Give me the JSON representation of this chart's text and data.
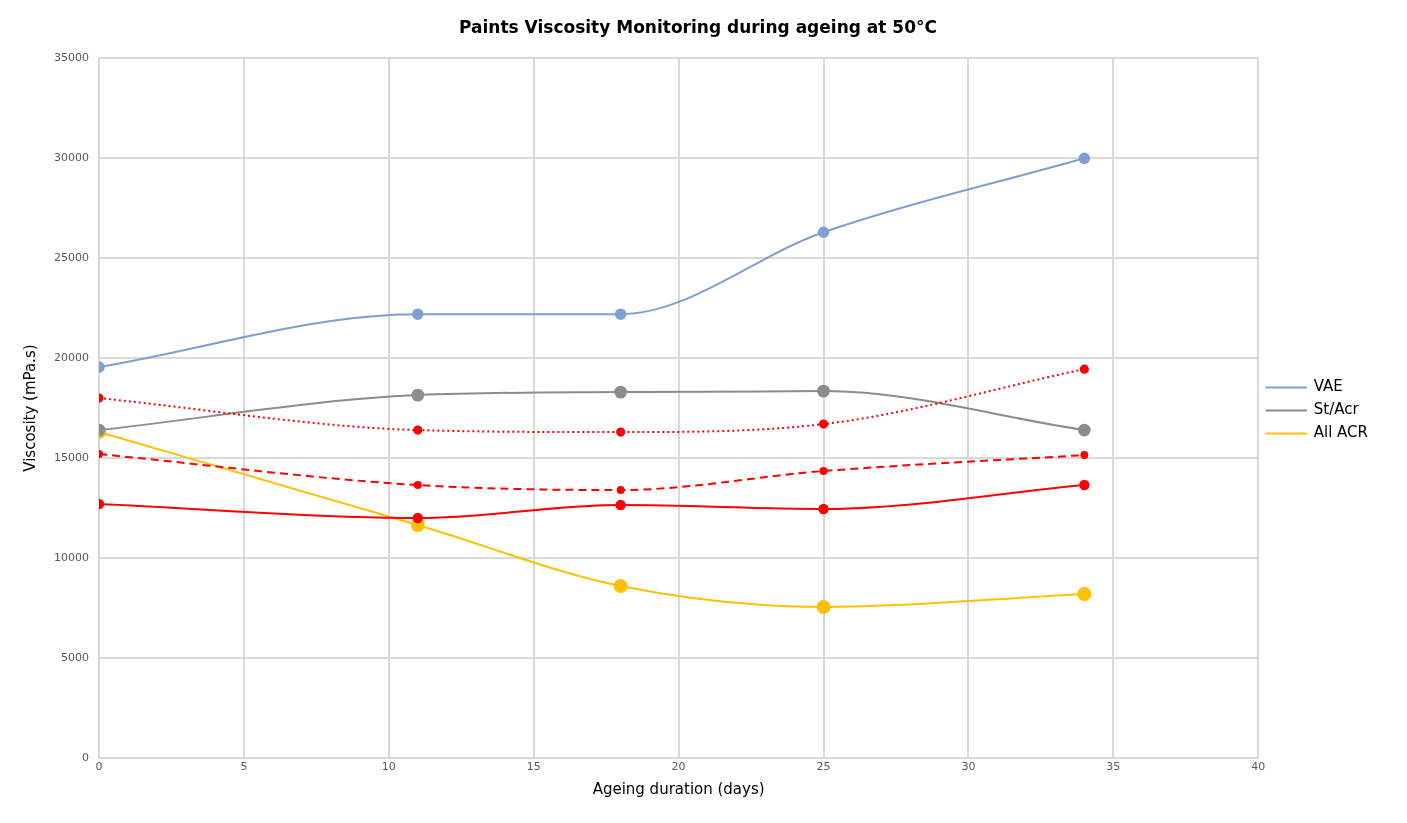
{
  "chart_data": {
    "type": "line",
    "title": "Paints Viscosity Monitoring during ageing at 50°C",
    "xlabel": "Ageing duration (days)",
    "ylabel": "Viscosity (mPa.s)",
    "x": [
      0,
      11,
      18,
      25,
      34
    ],
    "series": [
      {
        "color": "#ff0000",
        "line_style": "dashed",
        "values": [
          15200,
          13650,
          13400,
          14350,
          15150
        ]
      },
      {
        "color": "#ff0000",
        "line_style": "dotted",
        "values": [
          18000,
          16400,
          16300,
          16700,
          19450
        ]
      },
      {
        "color": "#ff0000",
        "line_style": "solid",
        "values": [
          12700,
          12000,
          12650,
          12450,
          13650
        ]
      },
      {
        "name": "VAE",
        "color": "#7da0d0",
        "line_style": "solid",
        "values": [
          19550,
          22200,
          22200,
          26300,
          30000
        ]
      },
      {
        "name": "St/Acr",
        "color": "#8c8c8c",
        "line_style": "solid",
        "values": [
          16400,
          18150,
          18300,
          18350,
          16400
        ]
      },
      {
        "name": "All ACR",
        "color": "#ffc000",
        "line_style": "solid",
        "values": [
          16300,
          11650,
          8600,
          7550,
          8200
        ]
      }
    ],
    "xlim": [
      0,
      40
    ],
    "xticks": [
      0,
      5,
      10,
      15,
      20,
      25,
      30,
      35,
      40
    ],
    "ylim": [
      0,
      35000
    ],
    "yticks": [
      0,
      5000,
      10000,
      15000,
      20000,
      25000,
      30000,
      35000
    ],
    "grid": true,
    "legend": "right",
    "marker": "circle"
  }
}
